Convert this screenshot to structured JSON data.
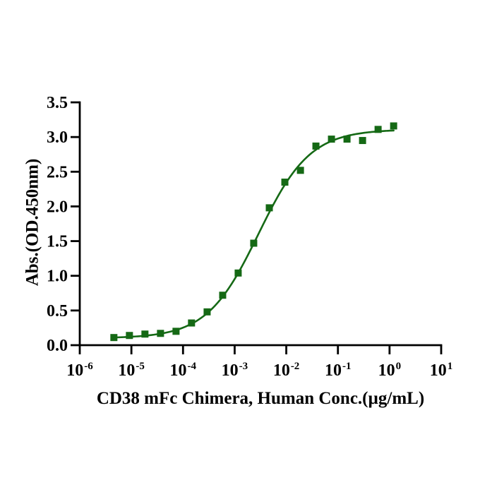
{
  "page": {
    "background": "#ffffff"
  },
  "chart_data": {
    "type": "scatter",
    "title": "",
    "xlabel": "CD38 mFc Chimera, Human Conc.(µg/mL)",
    "ylabel": "Abs.(OD.450nm)",
    "x_scale": "log10",
    "x_tick_base": "10",
    "x_tick_exponents": [
      -6,
      -5,
      -4,
      -3,
      -2,
      -1,
      0,
      1
    ],
    "xlim": [
      1e-06,
      10
    ],
    "y_ticks": [
      "0.0",
      "0.5",
      "1.0",
      "1.5",
      "2.0",
      "2.5",
      "3.0",
      "3.5"
    ],
    "ylim": [
      0,
      3.5
    ],
    "grid": false,
    "legend": false,
    "axis_color": "#000000",
    "series": [
      {
        "marker": "square",
        "color": "#156915",
        "x": [
          4.58e-06,
          9.16e-06,
          1.83e-05,
          3.66e-05,
          7.32e-05,
          0.000146,
          0.000293,
          0.000586,
          0.00117,
          0.00234,
          0.00469,
          0.00938,
          0.0188,
          0.0375,
          0.075,
          0.15,
          0.3,
          0.6,
          1.2
        ],
        "y": [
          0.11,
          0.14,
          0.16,
          0.17,
          0.2,
          0.32,
          0.48,
          0.72,
          1.04,
          1.47,
          1.98,
          2.35,
          2.52,
          2.87,
          2.97,
          2.97,
          2.95,
          3.11,
          3.16
        ]
      }
    ],
    "fit_curve": {
      "model": "4PL",
      "bottom": 0.1,
      "top": 3.11,
      "ec50": 0.0029,
      "hill": 0.87,
      "color": "#156915"
    }
  }
}
